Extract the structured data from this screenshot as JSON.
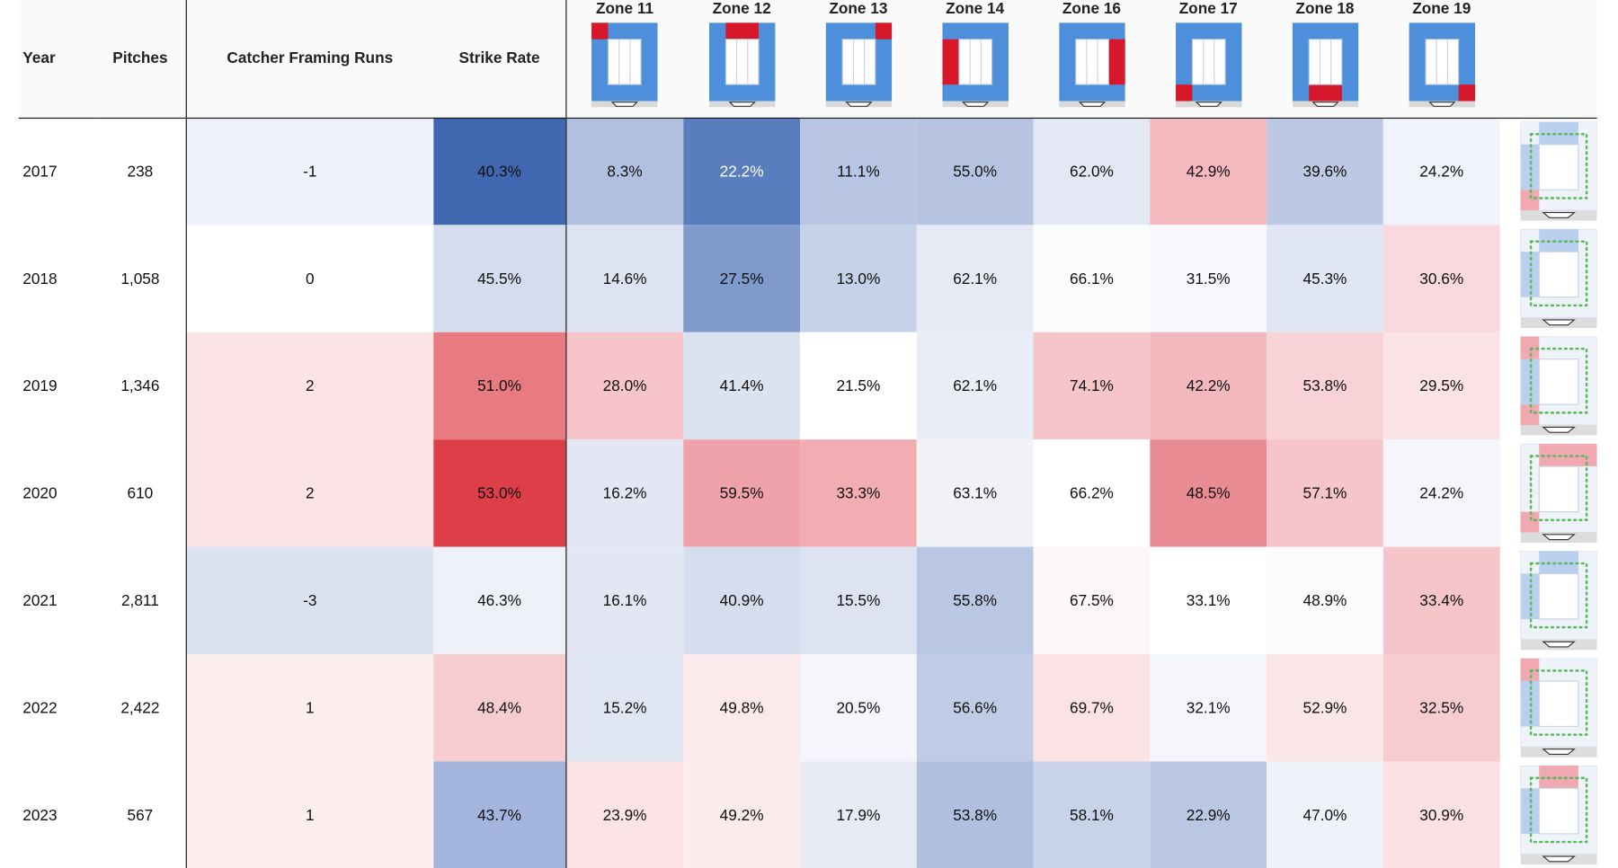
{
  "columns": {
    "year": "Year",
    "pitches": "Pitches",
    "framing": "Catcher Framing Runs",
    "strike_rate": "Strike Rate",
    "zones": [
      "Zone 11",
      "Zone 12",
      "Zone 13",
      "Zone 14",
      "Zone 16",
      "Zone 17",
      "Zone 18",
      "Zone 19"
    ]
  },
  "zone_icon_highlight": [
    "top-left",
    "top",
    "top-right",
    "left",
    "right",
    "bottom-left",
    "bottom",
    "bottom-right"
  ],
  "rows": [
    {
      "year": "2017",
      "pitches": "238",
      "framing": "-1",
      "strike_rate": "40.3%",
      "zones": [
        "8.3%",
        "22.2%",
        "11.1%",
        "55.0%",
        "62.0%",
        "42.9%",
        "39.6%",
        "24.2%"
      ]
    },
    {
      "year": "2018",
      "pitches": "1,058",
      "framing": "0",
      "strike_rate": "45.5%",
      "zones": [
        "14.6%",
        "27.5%",
        "13.0%",
        "62.1%",
        "66.1%",
        "31.5%",
        "45.3%",
        "30.6%"
      ]
    },
    {
      "year": "2019",
      "pitches": "1,346",
      "framing": "2",
      "strike_rate": "51.0%",
      "zones": [
        "28.0%",
        "41.4%",
        "21.5%",
        "62.1%",
        "74.1%",
        "42.2%",
        "53.8%",
        "29.5%"
      ]
    },
    {
      "year": "2020",
      "pitches": "610",
      "framing": "2",
      "strike_rate": "53.0%",
      "zones": [
        "16.2%",
        "59.5%",
        "33.3%",
        "63.1%",
        "66.2%",
        "48.5%",
        "57.1%",
        "24.2%"
      ]
    },
    {
      "year": "2021",
      "pitches": "2,811",
      "framing": "-3",
      "strike_rate": "46.3%",
      "zones": [
        "16.1%",
        "40.9%",
        "15.5%",
        "55.8%",
        "67.5%",
        "33.1%",
        "48.9%",
        "33.4%"
      ]
    },
    {
      "year": "2022",
      "pitches": "2,422",
      "framing": "1",
      "strike_rate": "48.4%",
      "zones": [
        "15.2%",
        "49.8%",
        "20.5%",
        "56.6%",
        "69.7%",
        "32.1%",
        "52.9%",
        "32.5%"
      ]
    },
    {
      "year": "2023",
      "pitches": "567",
      "framing": "1",
      "strike_rate": "43.7%",
      "zones": [
        "23.9%",
        "49.2%",
        "17.9%",
        "53.8%",
        "58.1%",
        "22.9%",
        "47.0%",
        "30.9%"
      ]
    }
  ],
  "cell_colors": [
    {
      "framing": "#eef1f9",
      "strike_rate": "#3f68b0",
      "zones": [
        "#b2c0e0",
        "#5a7dbd",
        "#b8c6e3",
        "#b6c4e2",
        "#e3e8f4",
        "#f4b8bf",
        "#bdc9e4",
        "#f1f3fa"
      ]
    },
    {
      "framing": "#ffffff",
      "strike_rate": "#d4dcee",
      "zones": [
        "#dde3f1",
        "#7f9bcd",
        "#c5d1e8",
        "#e6eaf5",
        "#fafbfd",
        "#f7f8fc",
        "#e0e6f3",
        "#f9d9dd"
      ]
    },
    {
      "framing": "#fbe3e6",
      "strike_rate": "#e87a81",
      "zones": [
        "#f6c4c9",
        "#dbe2f0",
        "#ffffff",
        "#e9edf6",
        "#f5c5ca",
        "#f2b8be",
        "#f8d2d6",
        "#fbe2e5"
      ]
    },
    {
      "framing": "#fbe3e6",
      "strike_rate": "#de3e47",
      "zones": [
        "#e2e7f3",
        "#efa2a9",
        "#f2adb3",
        "#f0f2f8",
        "#ffffff",
        "#e98b92",
        "#f5c5ca",
        "#f5f6fb"
      ]
    },
    {
      "framing": "#dbe2f0",
      "strike_rate": "#eef1f8",
      "zones": [
        "#e2e7f3",
        "#d6ddee",
        "#dde3f1",
        "#b9c7e3",
        "#fdf7f8",
        "#ffffff",
        "#fbfbfd",
        "#f5c5ca"
      ]
    },
    {
      "framing": "#fcedef",
      "strike_rate": "#f5ccd0",
      "zones": [
        "#e1e6f3",
        "#fce9eb",
        "#f4f6fb",
        "#c0cce6",
        "#fbe2e5",
        "#f5f6fb",
        "#fbe6e8",
        "#f7ccd0"
      ]
    },
    {
      "framing": "#fcedef",
      "strike_rate": "#a3b5dc",
      "zones": [
        "#fbe3e6",
        "#fcebed",
        "#e7ebf5",
        "#b0bfe0",
        "#c8d2e8",
        "#bac7e3",
        "#eef1f8",
        "#fbe1e4"
      ]
    }
  ],
  "sparkline_highlights": [
    {
      "blue": [
        "top",
        "left"
      ],
      "red": [
        "bottom-left"
      ]
    },
    {
      "blue": [
        "top",
        "left"
      ],
      "red": []
    },
    {
      "blue": [
        "left"
      ],
      "red": [
        "top-left",
        "bottom-left"
      ]
    },
    {
      "blue": [],
      "red": [
        "top",
        "top-right",
        "bottom-left"
      ]
    },
    {
      "blue": [
        "left",
        "top"
      ],
      "red": []
    },
    {
      "blue": [
        "left"
      ],
      "red": [
        "top-left"
      ]
    },
    {
      "blue": [
        "left"
      ],
      "red": [
        "top"
      ]
    }
  ]
}
